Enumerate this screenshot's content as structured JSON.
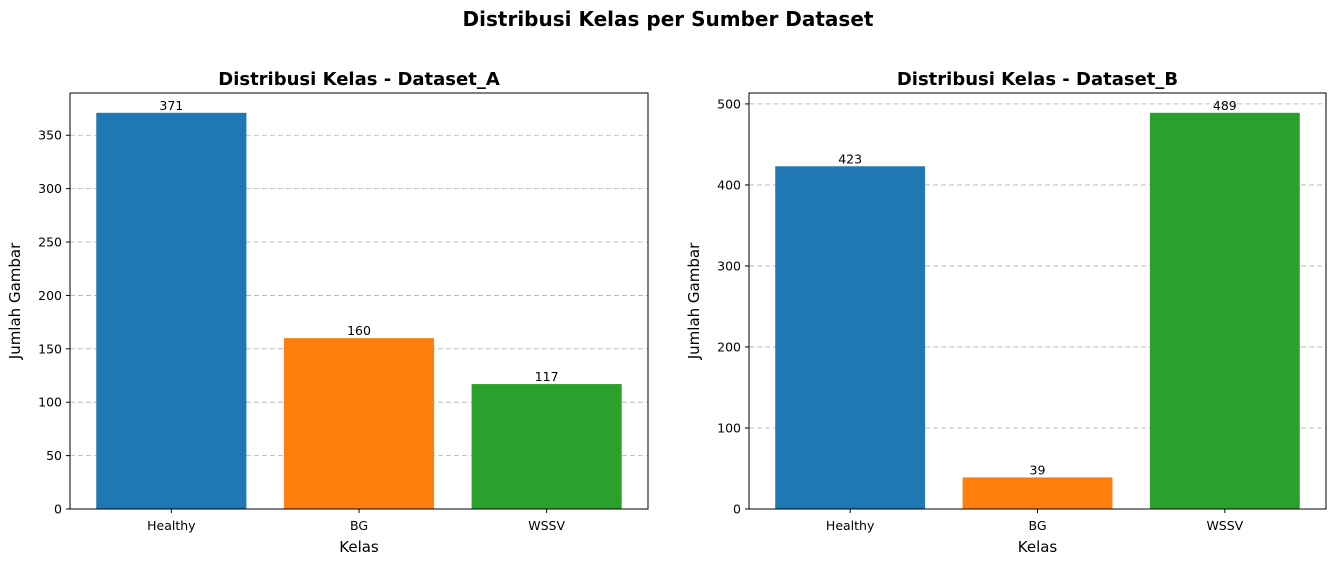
{
  "figure": {
    "title": "Distribusi Kelas per Sumber Dataset"
  },
  "colors": {
    "healthy": "#1f77b4",
    "bg": "#ff7f0e",
    "wssv": "#2ca02c"
  },
  "chart_data": [
    {
      "type": "bar",
      "title": "Distribusi Kelas - Dataset_A",
      "xlabel": "Kelas",
      "ylabel": "Jumlah Gambar",
      "categories": [
        "Healthy",
        "BG",
        "WSSV"
      ],
      "values": [
        371,
        160,
        117
      ],
      "bar_colors": [
        "#1f77b4",
        "#ff7f0e",
        "#2ca02c"
      ],
      "ylim": [
        0,
        389.55
      ],
      "yticks": [
        0,
        50,
        100,
        150,
        200,
        250,
        300,
        350
      ],
      "grid": "y-dashed",
      "legend": "none"
    },
    {
      "type": "bar",
      "title": "Distribusi Kelas - Dataset_B",
      "xlabel": "Kelas",
      "ylabel": "Jumlah Gambar",
      "categories": [
        "Healthy",
        "BG",
        "WSSV"
      ],
      "values": [
        423,
        39,
        489
      ],
      "bar_colors": [
        "#1f77b4",
        "#ff7f0e",
        "#2ca02c"
      ],
      "ylim": [
        0,
        513.45
      ],
      "yticks": [
        0,
        100,
        200,
        300,
        400,
        500
      ],
      "grid": "y-dashed",
      "legend": "none"
    }
  ]
}
